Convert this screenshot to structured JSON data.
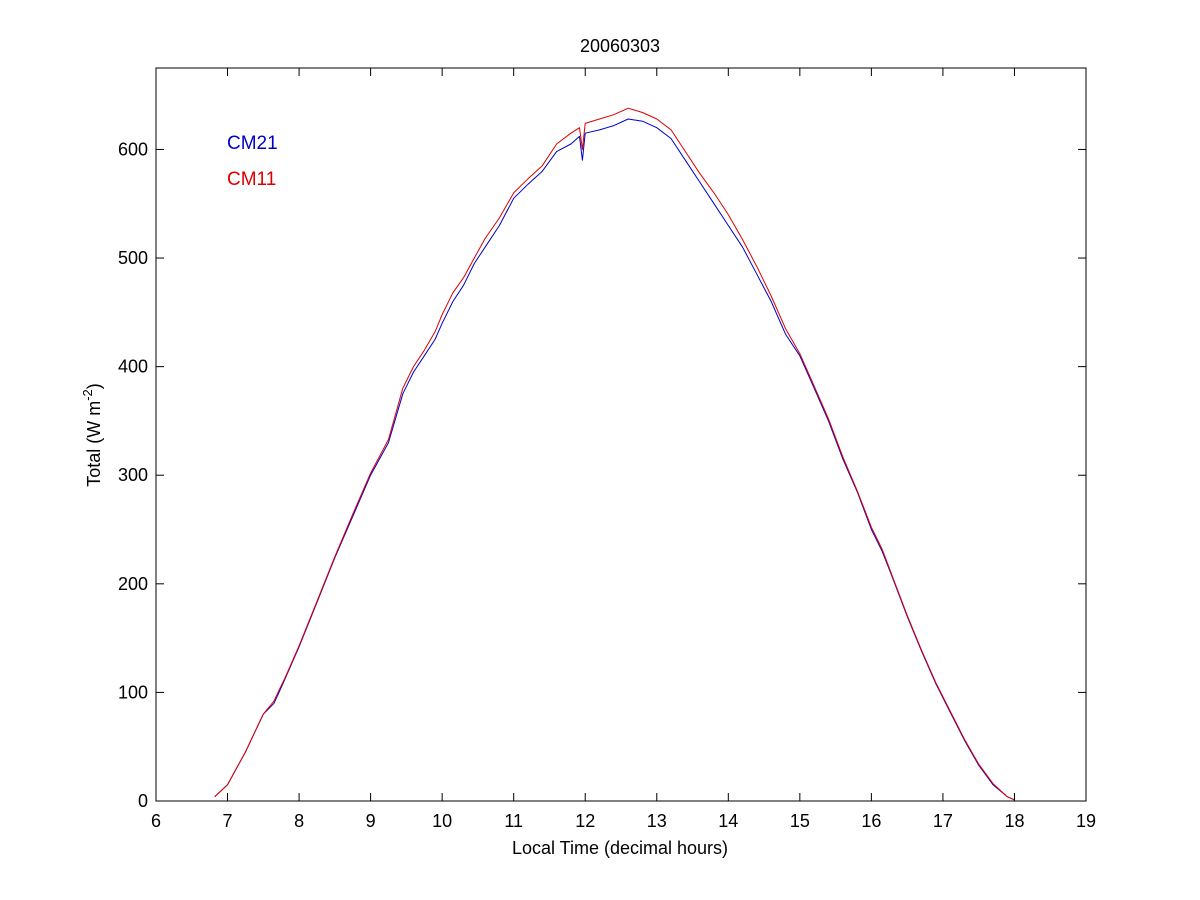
{
  "chart_data": {
    "type": "line",
    "title": "20060303",
    "xlabel": "Local Time (decimal hours)",
    "ylabel": {
      "main": "Total (W m",
      "superscript": "-2",
      "close": ")"
    },
    "xlim": [
      6,
      19
    ],
    "ylim": [
      0,
      675
    ],
    "xticks": [
      "6",
      "7",
      "8",
      "9",
      "10",
      "11",
      "12",
      "13",
      "14",
      "15",
      "16",
      "17",
      "18",
      "19"
    ],
    "yticks": [
      "0",
      "100",
      "200",
      "300",
      "400",
      "500",
      "600"
    ],
    "grid": false,
    "legend": {
      "placement": "top-left",
      "style": "colored-text"
    },
    "series": [
      {
        "name": "CM21",
        "color": "#0000cc",
        "x": [
          6.82,
          7.0,
          7.25,
          7.5,
          7.65,
          7.72,
          7.8,
          8.0,
          8.25,
          8.5,
          8.75,
          9.0,
          9.25,
          9.45,
          9.6,
          9.75,
          9.9,
          10.0,
          10.15,
          10.3,
          10.45,
          10.6,
          10.8,
          11.0,
          11.2,
          11.4,
          11.6,
          11.8,
          11.92,
          11.96,
          12.0,
          12.2,
          12.4,
          12.6,
          12.8,
          13.0,
          13.2,
          13.4,
          13.6,
          13.8,
          14.0,
          14.2,
          14.4,
          14.6,
          14.8,
          15.0,
          15.2,
          15.4,
          15.6,
          15.8,
          16.0,
          16.15,
          16.3,
          16.5,
          16.7,
          16.9,
          17.1,
          17.3,
          17.5,
          17.7,
          17.9,
          18.0
        ],
        "y": [
          4,
          15,
          45,
          80,
          90,
          100,
          112,
          142,
          183,
          224,
          262,
          300,
          330,
          375,
          395,
          410,
          425,
          440,
          460,
          475,
          495,
          510,
          530,
          555,
          568,
          580,
          598,
          605,
          612,
          590,
          615,
          618,
          622,
          628,
          626,
          620,
          610,
          590,
          570,
          550,
          530,
          510,
          485,
          460,
          430,
          410,
          380,
          350,
          315,
          285,
          250,
          230,
          205,
          170,
          138,
          108,
          82,
          56,
          33,
          15,
          4,
          1
        ]
      },
      {
        "name": "CM11",
        "color": "#dd0000",
        "x": [
          6.82,
          7.0,
          7.25,
          7.5,
          7.65,
          7.72,
          7.8,
          8.0,
          8.25,
          8.5,
          8.75,
          9.0,
          9.25,
          9.45,
          9.6,
          9.75,
          9.9,
          10.0,
          10.15,
          10.3,
          10.45,
          10.6,
          10.8,
          11.0,
          11.2,
          11.4,
          11.6,
          11.8,
          11.92,
          11.96,
          12.0,
          12.2,
          12.4,
          12.6,
          12.8,
          13.0,
          13.2,
          13.4,
          13.6,
          13.8,
          14.0,
          14.2,
          14.4,
          14.6,
          14.8,
          15.0,
          15.2,
          15.4,
          15.6,
          15.8,
          16.0,
          16.15,
          16.3,
          16.5,
          16.7,
          16.9,
          17.1,
          17.3,
          17.5,
          17.7,
          17.9,
          18.0
        ],
        "y": [
          4,
          15,
          45,
          80,
          92,
          102,
          113,
          143,
          184,
          225,
          264,
          302,
          333,
          380,
          400,
          415,
          432,
          448,
          468,
          482,
          500,
          518,
          537,
          560,
          573,
          585,
          605,
          615,
          620,
          600,
          624,
          628,
          632,
          638,
          634,
          628,
          618,
          598,
          578,
          560,
          540,
          517,
          492,
          465,
          435,
          412,
          382,
          352,
          317,
          286,
          252,
          232,
          206,
          171,
          139,
          109,
          83,
          57,
          34,
          16,
          4,
          1
        ]
      }
    ]
  }
}
